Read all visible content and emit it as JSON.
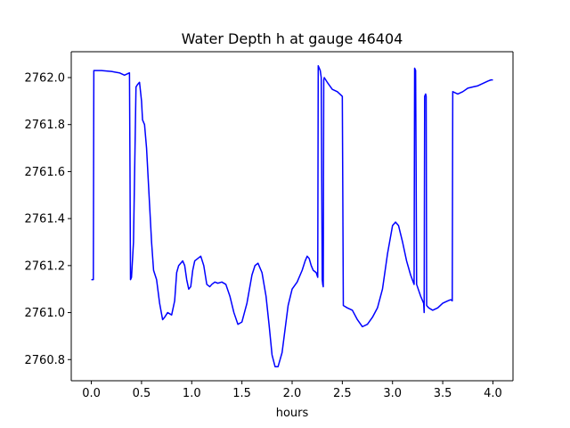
{
  "chart_data": {
    "type": "line",
    "title": "Water Depth h at gauge 46404",
    "xlabel": "hours",
    "ylabel": "",
    "xlim": [
      -0.2,
      4.2
    ],
    "ylim": [
      2760.71,
      2762.11
    ],
    "x_ticks": [
      0.0,
      0.5,
      1.0,
      1.5,
      2.0,
      2.5,
      3.0,
      3.5,
      4.0
    ],
    "x_tick_labels": [
      "0.0",
      "0.5",
      "1.0",
      "1.5",
      "2.0",
      "2.5",
      "3.0",
      "3.5",
      "4.0"
    ],
    "y_ticks": [
      2760.8,
      2761.0,
      2761.2,
      2761.4,
      2761.6,
      2761.8,
      2762.0
    ],
    "y_tick_labels": [
      "2760.8",
      "2761.0",
      "2761.2",
      "2761.4",
      "2761.6",
      "2761.8",
      "2762.0"
    ],
    "grid": false,
    "series": [
      {
        "color": "#0000ff",
        "x": [
          0.0,
          0.02,
          0.025,
          0.1,
          0.2,
          0.28,
          0.33,
          0.38,
          0.385,
          0.39,
          0.4,
          0.42,
          0.445,
          0.46,
          0.48,
          0.5,
          0.51,
          0.53,
          0.55,
          0.58,
          0.6,
          0.62,
          0.65,
          0.68,
          0.71,
          0.73,
          0.76,
          0.8,
          0.83,
          0.85,
          0.87,
          0.89,
          0.91,
          0.93,
          0.95,
          0.97,
          0.99,
          1.01,
          1.03,
          1.06,
          1.09,
          1.12,
          1.15,
          1.18,
          1.2,
          1.23,
          1.26,
          1.3,
          1.34,
          1.38,
          1.42,
          1.46,
          1.5,
          1.55,
          1.6,
          1.63,
          1.66,
          1.7,
          1.74,
          1.77,
          1.8,
          1.83,
          1.86,
          1.9,
          1.93,
          1.96,
          2.0,
          2.05,
          2.1,
          2.13,
          2.15,
          2.17,
          2.19,
          2.21,
          2.24,
          2.255,
          2.26,
          2.28,
          2.29,
          2.3,
          2.305,
          2.31,
          2.315,
          2.32,
          2.35,
          2.4,
          2.45,
          2.5,
          2.505,
          2.51,
          2.55,
          2.6,
          2.65,
          2.7,
          2.75,
          2.8,
          2.85,
          2.9,
          2.95,
          3.0,
          3.03,
          3.06,
          3.1,
          3.14,
          3.18,
          3.215,
          3.22,
          3.23,
          3.235,
          3.24,
          3.28,
          3.31,
          3.315,
          3.32,
          3.33,
          3.335,
          3.34,
          3.36,
          3.4,
          3.45,
          3.5,
          3.55,
          3.58,
          3.595,
          3.6,
          3.65,
          3.7,
          3.75,
          3.8,
          3.85,
          3.9,
          3.95,
          3.98,
          4.0
        ],
        "y": [
          2761.14,
          2761.14,
          2762.03,
          2762.03,
          2762.026,
          2762.02,
          2762.01,
          2762.02,
          2761.62,
          2761.14,
          2761.15,
          2761.3,
          2761.96,
          2761.97,
          2761.98,
          2761.9,
          2761.82,
          2761.8,
          2761.7,
          2761.46,
          2761.3,
          2761.18,
          2761.14,
          2761.04,
          2760.97,
          2760.98,
          2761.0,
          2760.99,
          2761.05,
          2761.17,
          2761.2,
          2761.21,
          2761.22,
          2761.2,
          2761.14,
          2761.1,
          2761.11,
          2761.18,
          2761.22,
          2761.23,
          2761.24,
          2761.2,
          2761.12,
          2761.11,
          2761.12,
          2761.13,
          2761.125,
          2761.13,
          2761.12,
          2761.07,
          2761.0,
          2760.95,
          2760.96,
          2761.04,
          2761.16,
          2761.2,
          2761.21,
          2761.17,
          2761.07,
          2760.95,
          2760.82,
          2760.77,
          2760.77,
          2760.83,
          2760.93,
          2761.03,
          2761.1,
          2761.13,
          2761.18,
          2761.22,
          2761.24,
          2761.23,
          2761.2,
          2761.18,
          2761.17,
          2761.15,
          2762.05,
          2762.03,
          2762.0,
          2761.14,
          2761.12,
          2761.11,
          2761.99,
          2762.0,
          2761.98,
          2761.95,
          2761.94,
          2761.92,
          2761.48,
          2761.03,
          2761.02,
          2761.01,
          2760.97,
          2760.94,
          2760.95,
          2760.98,
          2761.02,
          2761.1,
          2761.25,
          2761.37,
          2761.385,
          2761.37,
          2761.3,
          2761.22,
          2761.16,
          2761.12,
          2762.04,
          2762.03,
          2761.6,
          2761.12,
          2761.07,
          2761.04,
          2761.0,
          2761.92,
          2761.93,
          2761.92,
          2761.03,
          2761.02,
          2761.01,
          2761.02,
          2761.04,
          2761.05,
          2761.055,
          2761.05,
          2761.94,
          2761.93,
          2761.94,
          2761.955,
          2761.96,
          2761.965,
          2761.975,
          2761.985,
          2761.99,
          2761.99
        ]
      }
    ]
  }
}
